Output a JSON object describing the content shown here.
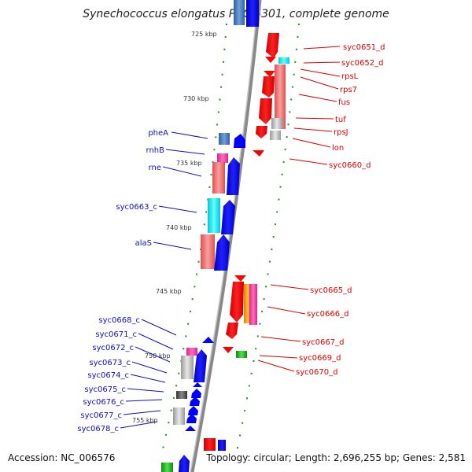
{
  "title": "Synechococcus elongatus PCC 6301, complete genome",
  "footer": {
    "accession": "Accession: NC_006576",
    "summary": "Topology: circular; Length: 2,696,255 bp; Genes: 2,581"
  },
  "kbp_labels": [
    "725 kbp",
    "730 kbp",
    "735 kbp",
    "740 kbp",
    "745 kbp",
    "750 kbp",
    "755 kbp"
  ],
  "right_labels": [
    "syc0651_d",
    "syc0652_d",
    "rpsL",
    "rps7",
    "fus",
    "tuf",
    "rpsJ",
    "lon",
    "syc0660_d",
    "syc0665_d",
    "syc0666_d",
    "syc0667_d",
    "syc0669_d",
    "syc0670_d"
  ],
  "left_labels": [
    "pheA",
    "rnhB",
    "rne",
    "syc0663_c",
    "alaS",
    "syc0668_c",
    "syc0671_c",
    "syc0672_c",
    "syc0673_c",
    "syc0674_c",
    "syc0675_c",
    "syc0676_c",
    "syc0677_c",
    "syc0678_c"
  ],
  "colors": {
    "forward_strand": "#ff0000",
    "reverse_strand": "#0000ff",
    "tick_green": "#228b22",
    "axis_gray": "#888888"
  }
}
